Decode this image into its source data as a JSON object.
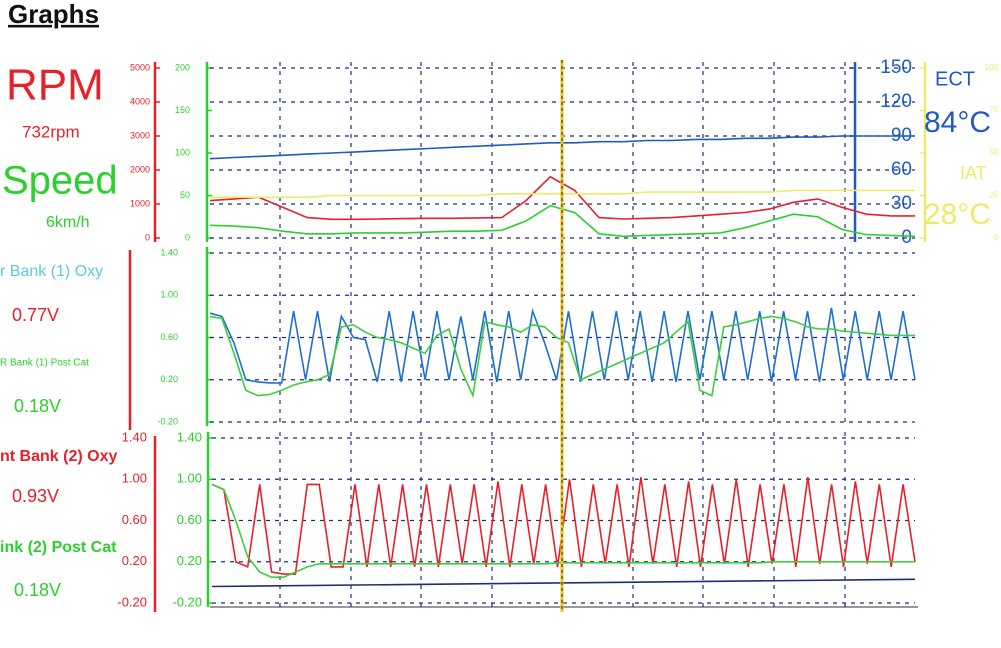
{
  "title": "Graphs",
  "chart_data": [
    {
      "type": "line",
      "axes": [
        {
          "color": "#e8202a",
          "ylim": [
            0,
            5000
          ],
          "yticks": [
            0,
            1000,
            2000,
            3000,
            4000,
            5000
          ]
        },
        {
          "color": "#2bd12b",
          "ylim": [
            0,
            200
          ],
          "yticks": [
            0,
            50,
            100,
            150,
            200
          ]
        },
        {
          "color": "#1f5bc4",
          "ylim": [
            0,
            150
          ],
          "yticks": [
            0,
            30,
            60,
            90,
            120,
            150
          ],
          "grid": true
        },
        {
          "color": "#f0ea6a",
          "ylim": [
            0,
            100
          ],
          "yticks": [
            0,
            25,
            50,
            75,
            100
          ]
        }
      ],
      "series": [
        {
          "name": "RPM",
          "reading": "732rpm",
          "color": "#e8202a",
          "axis": 0,
          "values": [
            1100,
            1150,
            1200,
            900,
            600,
            550,
            550,
            560,
            570,
            580,
            580,
            590,
            600,
            1100,
            1800,
            1400,
            600,
            560,
            580,
            600,
            650,
            700,
            750,
            850,
            1050,
            1150,
            900,
            700,
            650,
            650
          ]
        },
        {
          "name": "Speed",
          "reading": "6km/h",
          "color": "#2bd12b",
          "axis": 1,
          "values": [
            15,
            14,
            12,
            8,
            5,
            5,
            6,
            6,
            6,
            7,
            8,
            8,
            9,
            20,
            38,
            30,
            5,
            2,
            3,
            4,
            5,
            6,
            12,
            20,
            28,
            25,
            10,
            4,
            3,
            2
          ]
        },
        {
          "name": "ECT",
          "reading": "84°C",
          "color": "#1f5bc4",
          "axis": 2,
          "values": [
            70,
            71,
            72,
            73,
            74,
            75,
            76,
            77,
            78,
            79,
            80,
            81,
            82,
            83,
            84,
            84,
            85,
            85,
            86,
            86,
            87,
            87,
            88,
            88,
            89,
            89,
            90,
            90,
            90,
            90
          ]
        },
        {
          "name": "IAT",
          "reading": "28°C",
          "color": "#f0ea6a",
          "axis": 3,
          "values": [
            24,
            24,
            24,
            24,
            24,
            25,
            25,
            25,
            25,
            25,
            25,
            25,
            26,
            26,
            26,
            26,
            26,
            26,
            27,
            27,
            27,
            27,
            27,
            27,
            28,
            28,
            28,
            28,
            28,
            28
          ]
        }
      ]
    },
    {
      "type": "line",
      "axes": [
        {
          "color": "#2bd12b",
          "ylim": [
            -0.2,
            1.4
          ],
          "grid": true,
          "yticks": [
            {
              "value": -0.2,
              "label": "-0.20"
            },
            {
              "value": 0.2,
              "label": "0.20"
            },
            {
              "value": 0.6,
              "label": "0.60"
            },
            {
              "value": 1.0,
              "label": "1.00"
            },
            {
              "value": 1.4,
              "label": "1.40"
            }
          ]
        }
      ],
      "series": [
        {
          "name": "r Bank (1) Oxy",
          "reading": "0.77V",
          "color": "#1e6fd0",
          "axis": 0,
          "values": [
            0.83,
            0.8,
            0.55,
            0.2,
            0.18,
            0.17,
            0.17,
            0.85,
            0.2,
            0.85,
            0.18,
            0.8,
            0.6,
            0.58,
            0.18,
            0.85,
            0.18,
            0.85,
            0.2,
            0.85,
            0.2,
            0.8,
            0.2,
            0.85,
            0.18,
            0.85,
            0.2,
            0.85,
            0.55,
            0.2,
            0.85,
            0.18,
            0.85,
            0.2,
            0.85,
            0.2,
            0.85,
            0.18,
            0.85,
            0.18,
            0.85,
            0.2,
            0.85,
            0.2,
            0.85,
            0.2,
            0.85,
            0.18,
            0.85,
            0.2,
            0.85,
            0.18,
            0.88,
            0.2,
            0.85,
            0.2,
            0.85,
            0.2,
            0.85,
            0.2
          ]
        },
        {
          "name": "R Bank (1) Post Cat",
          "reading": "0.18V",
          "color": "#3ccf3c",
          "axis": 0,
          "values": [
            0.8,
            0.78,
            0.45,
            0.1,
            0.05,
            0.06,
            0.1,
            0.15,
            0.18,
            0.2,
            0.25,
            0.7,
            0.72,
            0.65,
            0.6,
            0.58,
            0.55,
            0.5,
            0.45,
            0.62,
            0.68,
            0.3,
            0.05,
            0.75,
            0.72,
            0.7,
            0.65,
            0.72,
            0.7,
            0.6,
            0.55,
            0.2,
            0.25,
            0.3,
            0.35,
            0.4,
            0.45,
            0.5,
            0.55,
            0.65,
            0.75,
            0.1,
            0.05,
            0.7,
            0.72,
            0.75,
            0.78,
            0.8,
            0.78,
            0.75,
            0.7,
            0.68,
            0.68,
            0.66,
            0.65,
            0.64,
            0.63,
            0.62,
            0.62,
            0.62
          ]
        }
      ]
    },
    {
      "type": "line",
      "axes": [
        {
          "color": "#2bd12b",
          "ylim": [
            -0.2,
            1.4
          ],
          "grid": true,
          "yticks": [
            {
              "value": -0.2,
              "label": "-0.20"
            },
            {
              "value": 0.2,
              "label": "0.20"
            },
            {
              "value": 0.6,
              "label": "0.60"
            },
            {
              "value": 1.0,
              "label": "1.00"
            },
            {
              "value": 1.4,
              "label": "1.40"
            }
          ]
        }
      ],
      "series": [
        {
          "name": "nt Bank (2) Oxy",
          "reading": "0.93V",
          "color": "#e8202a",
          "axis": 0,
          "values": [
            0.95,
            0.9,
            0.2,
            0.15,
            0.95,
            0.1,
            0.08,
            0.08,
            0.95,
            0.95,
            0.15,
            0.15,
            0.95,
            0.15,
            0.95,
            0.15,
            0.95,
            0.15,
            0.95,
            0.15,
            0.95,
            0.18,
            0.95,
            0.15,
            0.98,
            0.15,
            0.95,
            0.18,
            0.95,
            0.15,
            1.0,
            0.15,
            0.95,
            0.18,
            0.95,
            0.15,
            1.02,
            0.18,
            0.95,
            0.15,
            0.98,
            0.15,
            0.95,
            0.18,
            1.0,
            0.15,
            0.95,
            0.18,
            0.95,
            0.15,
            1.02,
            0.18,
            0.95,
            0.15,
            0.98,
            0.18,
            0.95,
            0.15,
            0.95,
            0.2
          ]
        },
        {
          "name": "ink (2) Post Cat",
          "reading": "0.18V",
          "color": "#3ccf3c",
          "axis": 0,
          "values": [
            0.95,
            0.9,
            0.6,
            0.25,
            0.1,
            0.05,
            0.05,
            0.1,
            0.15,
            0.18,
            0.18,
            0.18,
            0.18,
            0.18,
            0.18,
            0.18,
            0.18,
            0.18,
            0.18,
            0.18,
            0.18,
            0.18,
            0.18,
            0.18,
            0.18,
            0.18,
            0.18,
            0.18,
            0.18,
            0.19,
            0.19,
            0.19,
            0.19,
            0.19,
            0.19,
            0.19,
            0.19,
            0.19,
            0.19,
            0.19,
            0.19,
            0.19,
            0.19,
            0.19,
            0.19,
            0.19,
            0.19,
            0.2,
            0.2,
            0.2,
            0.2,
            0.2,
            0.2,
            0.2,
            0.2,
            0.2,
            0.2,
            0.2,
            0.2,
            0.2
          ]
        },
        {
          "color": "#1c2f7a",
          "axis": 0,
          "values": [
            -0.04,
            0.03
          ]
        }
      ]
    }
  ]
}
